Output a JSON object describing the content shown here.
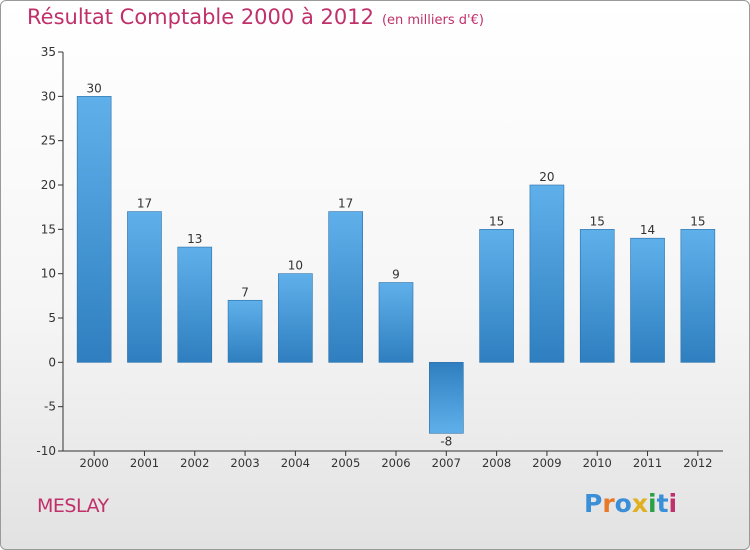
{
  "header": {
    "title": "Résultat Comptable 2000 à 2012",
    "unit": "(en milliers d'€)"
  },
  "footer": {
    "commune": "MESLAY",
    "brand": "Proxiti"
  },
  "colors": {
    "title": "#c0306a",
    "bar_top": "#5fb0ea",
    "bar_bottom": "#2f7fc0",
    "bar_neg_top": "#2f7fc0",
    "bar_neg_bottom": "#5fb0ea"
  },
  "chart_data": {
    "type": "bar",
    "title": "Résultat Comptable 2000 à 2012",
    "subtitle": "(en milliers d'€)",
    "xlabel": "",
    "ylabel": "",
    "categories": [
      "2000",
      "2001",
      "2002",
      "2003",
      "2004",
      "2005",
      "2006",
      "2007",
      "2008",
      "2009",
      "2010",
      "2011",
      "2012"
    ],
    "values": [
      30,
      17,
      13,
      7,
      10,
      17,
      9,
      -8,
      15,
      20,
      15,
      14,
      15
    ],
    "ylim": [
      -10,
      35
    ],
    "yticks": [
      -10,
      -5,
      0,
      5,
      10,
      15,
      20,
      25,
      30,
      35
    ],
    "grid": false,
    "data_labels": true
  }
}
